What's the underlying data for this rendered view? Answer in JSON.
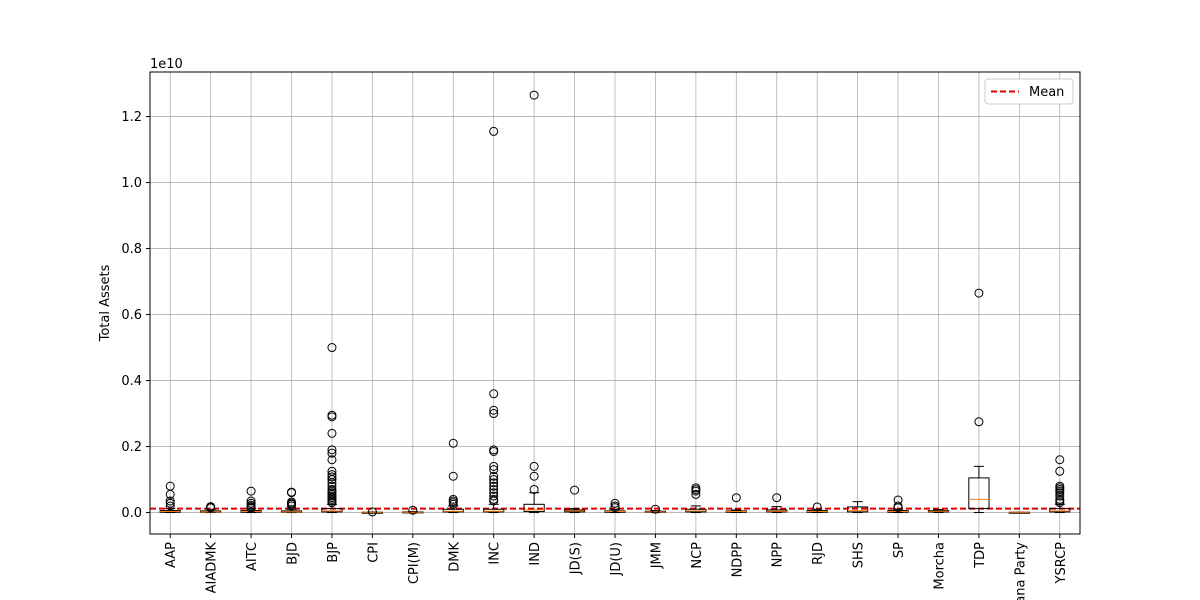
{
  "chart_data": {
    "type": "box",
    "ylabel": "Total Assets",
    "offset_label": "1e10",
    "y_scale_factor": 10000000000,
    "ylim": [
      -0.065,
      1.335
    ],
    "yticks": [
      0.0,
      0.2,
      0.4,
      0.6,
      0.8,
      1.0,
      1.2
    ],
    "ytick_labels": [
      "0.0",
      "0.2",
      "0.4",
      "0.6",
      "0.8",
      "1.0",
      "1.2"
    ],
    "grid": true,
    "legend": {
      "position": "top-right",
      "entries": [
        {
          "label": "Mean",
          "color": "#e00000",
          "style": "dashed"
        }
      ]
    },
    "mean_line": 0.012,
    "colors": {
      "box": "#000000",
      "median": "#ff7f0e",
      "mean": "#e00000",
      "grid": "#b0b0b0"
    },
    "categories": [
      "AAP",
      "AIADMK",
      "AITC",
      "BJD",
      "BJP",
      "CPI",
      "CPI(M)",
      "DMK",
      "INC",
      "IND",
      "JD(S)",
      "JD(U)",
      "JMM",
      "NCP",
      "NDPP",
      "NPP",
      "RJD",
      "SHS",
      "SP",
      "Morcha",
      "TDP",
      "Jana Party",
      "YSRCP"
    ],
    "boxes": [
      {
        "category": "AAP",
        "whislo": 0.0,
        "q1": 0.001,
        "med": 0.003,
        "q3": 0.006,
        "whishi": 0.012,
        "fliers": [
          0.08,
          0.055,
          0.035,
          0.028,
          0.02
        ]
      },
      {
        "category": "AIADMK",
        "whislo": 0.0,
        "q1": 0.001,
        "med": 0.002,
        "q3": 0.005,
        "whishi": 0.01,
        "fliers": [
          0.018,
          0.016,
          0.014
        ]
      },
      {
        "category": "AITC",
        "whislo": 0.0,
        "q1": 0.001,
        "med": 0.003,
        "q3": 0.006,
        "whishi": 0.012,
        "fliers": [
          0.065,
          0.035,
          0.028,
          0.022,
          0.018,
          0.015,
          0.013
        ]
      },
      {
        "category": "BJD",
        "whislo": 0.0,
        "q1": 0.001,
        "med": 0.002,
        "q3": 0.005,
        "whishi": 0.01,
        "fliers": [
          0.062,
          0.06,
          0.032,
          0.028,
          0.025,
          0.02
        ]
      },
      {
        "category": "BJP",
        "whislo": 0.0,
        "q1": 0.002,
        "med": 0.005,
        "q3": 0.012,
        "whishi": 0.025,
        "fliers": [
          0.5,
          0.295,
          0.29,
          0.24,
          0.19,
          0.18,
          0.16,
          0.125,
          0.115,
          0.108,
          0.1,
          0.09,
          0.08,
          0.07,
          0.065,
          0.06,
          0.055,
          0.05,
          0.045,
          0.04,
          0.035,
          0.03
        ]
      },
      {
        "category": "CPI",
        "whislo": 0.0,
        "q1": 0.0005,
        "med": 0.001,
        "q3": 0.001,
        "whishi": 0.002,
        "fliers": [
          0.002
        ]
      },
      {
        "category": "CPI(M)",
        "whislo": 0.0,
        "q1": 0.0005,
        "med": 0.001,
        "q3": 0.002,
        "whishi": 0.003,
        "fliers": [
          0.007
        ]
      },
      {
        "category": "DMK",
        "whislo": 0.0,
        "q1": 0.002,
        "med": 0.004,
        "q3": 0.01,
        "whishi": 0.02,
        "fliers": [
          0.21,
          0.11,
          0.04,
          0.035,
          0.03,
          0.025
        ]
      },
      {
        "category": "INC",
        "whislo": 0.0,
        "q1": 0.002,
        "med": 0.004,
        "q3": 0.01,
        "whishi": 0.025,
        "fliers": [
          1.155,
          0.36,
          0.31,
          0.3,
          0.19,
          0.185,
          0.14,
          0.13,
          0.11,
          0.1,
          0.09,
          0.08,
          0.07,
          0.06,
          0.05,
          0.04,
          0.035
        ]
      },
      {
        "category": "IND",
        "whislo": 0.0,
        "q1": 0.003,
        "med": 0.008,
        "q3": 0.025,
        "whishi": 0.06,
        "fliers": [
          1.265,
          0.14,
          0.11,
          0.07
        ]
      },
      {
        "category": "JD(S)",
        "whislo": 0.0,
        "q1": 0.002,
        "med": 0.005,
        "q3": 0.008,
        "whishi": 0.012,
        "fliers": [
          0.068
        ]
      },
      {
        "category": "JD(U)",
        "whislo": 0.0,
        "q1": 0.001,
        "med": 0.003,
        "q3": 0.005,
        "whishi": 0.01,
        "fliers": [
          0.028,
          0.02,
          0.015
        ]
      },
      {
        "category": "JMM",
        "whislo": 0.0,
        "q1": 0.001,
        "med": 0.002,
        "q3": 0.004,
        "whishi": 0.006,
        "fliers": [
          0.01
        ]
      },
      {
        "category": "NCP",
        "whislo": 0.0,
        "q1": 0.002,
        "med": 0.005,
        "q3": 0.01,
        "whishi": 0.02,
        "fliers": [
          0.075,
          0.07,
          0.065,
          0.055
        ]
      },
      {
        "category": "NDPP",
        "whislo": 0.0,
        "q1": 0.001,
        "med": 0.003,
        "q3": 0.005,
        "whishi": 0.008,
        "fliers": [
          0.045
        ]
      },
      {
        "category": "NPP",
        "whislo": 0.0,
        "q1": 0.002,
        "med": 0.004,
        "q3": 0.008,
        "whishi": 0.018,
        "fliers": [
          0.045
        ]
      },
      {
        "category": "RJD",
        "whislo": 0.0,
        "q1": 0.001,
        "med": 0.003,
        "q3": 0.006,
        "whishi": 0.01,
        "fliers": [
          0.017
        ]
      },
      {
        "category": "SHS",
        "whislo": 0.0,
        "q1": 0.002,
        "med": 0.006,
        "q3": 0.017,
        "whishi": 0.033,
        "fliers": []
      },
      {
        "category": "SP",
        "whislo": 0.0,
        "q1": 0.001,
        "med": 0.003,
        "q3": 0.006,
        "whishi": 0.01,
        "fliers": [
          0.038,
          0.02,
          0.015
        ]
      },
      {
        "category": "Morcha",
        "whislo": 0.0,
        "q1": 0.002,
        "med": 0.004,
        "q3": 0.006,
        "whishi": 0.009,
        "fliers": []
      },
      {
        "category": "TDP",
        "whislo": 0.0,
        "q1": 0.012,
        "med": 0.04,
        "q3": 0.105,
        "whishi": 0.14,
        "fliers": [
          0.665,
          0.275
        ]
      },
      {
        "category": "Jana Party",
        "whislo": 0.0,
        "q1": 0.0005,
        "med": 0.001,
        "q3": 0.001,
        "whishi": 0.001,
        "fliers": []
      },
      {
        "category": "YSRCP",
        "whislo": 0.0,
        "q1": 0.002,
        "med": 0.005,
        "q3": 0.012,
        "whishi": 0.025,
        "fliers": [
          0.16,
          0.125,
          0.08,
          0.075,
          0.07,
          0.065,
          0.06,
          0.05,
          0.04,
          0.035,
          0.03
        ]
      }
    ]
  }
}
